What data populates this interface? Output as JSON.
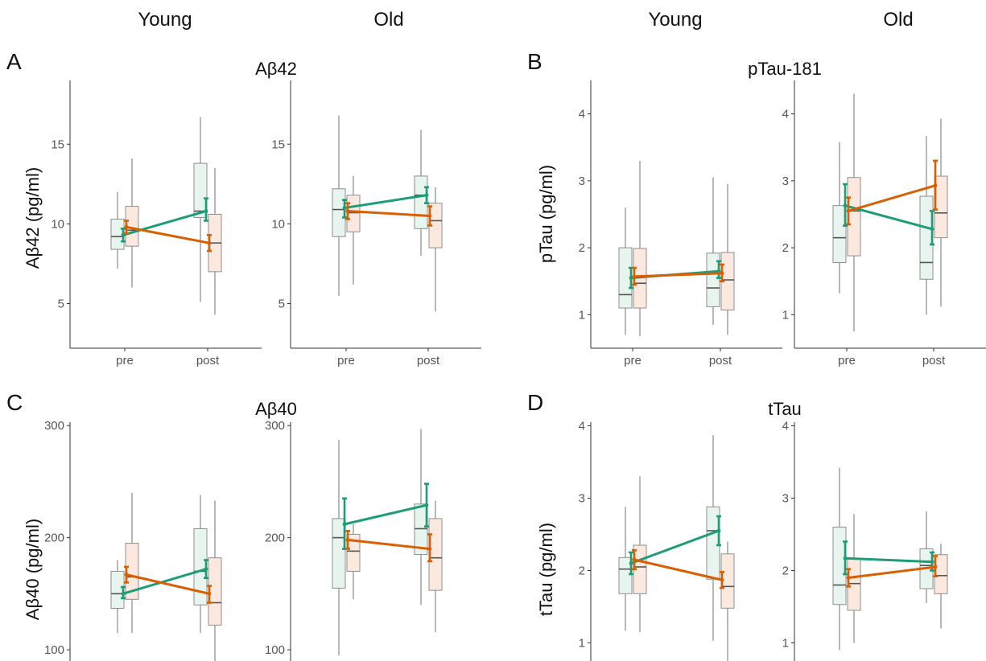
{
  "column_headers": [
    "Young",
    "Old",
    "Young",
    "Old"
  ],
  "colors": {
    "group1": "#1b9e77",
    "group2": "#d95f02",
    "box1_fill": "#e8f5ef",
    "box2_fill": "#fbe9df",
    "box_edge": "#8f8f8f",
    "whisker": "#8a8a8a",
    "axis": "#333333"
  },
  "chart_data": [
    {
      "type": "box+line",
      "panel_label": "A",
      "title": "Aβ42",
      "ylabel": "Aβ42 (pg/ml)",
      "categories": [
        "pre",
        "post"
      ],
      "ylim": [
        2.2,
        19
      ],
      "yticks": [
        5,
        10,
        15
      ],
      "subplots": [
        {
          "name": "Young",
          "boxes": [
            [
              {
                "q1": 8.4,
                "median": 9.2,
                "q3": 10.3,
                "wlo": 7.2,
                "whi": 12.0
              },
              {
                "q1": 8.6,
                "median": 9.6,
                "q3": 11.1,
                "wlo": 6.0,
                "whi": 14.1
              }
            ],
            [
              {
                "q1": 10.4,
                "median": 10.8,
                "q3": 13.8,
                "wlo": 5.1,
                "whi": 16.7
              },
              {
                "q1": 7.0,
                "median": 8.8,
                "q3": 10.6,
                "wlo": 4.3,
                "whi": 13.5
              }
            ]
          ],
          "series": [
            {
              "values": [
                9.3,
                10.8
              ],
              "err": [
                [
                  8.9,
                  9.7
                ],
                [
                  10.2,
                  11.6
                ]
              ]
            },
            {
              "values": [
                9.8,
                8.8
              ],
              "err": [
                [
                  9.4,
                  10.2
                ],
                [
                  8.3,
                  9.3
                ]
              ]
            }
          ]
        },
        {
          "name": "Old",
          "boxes": [
            [
              {
                "q1": 9.2,
                "median": 10.9,
                "q3": 12.2,
                "wlo": 5.5,
                "whi": 16.8
              },
              {
                "q1": 9.5,
                "median": 10.7,
                "q3": 11.8,
                "wlo": 6.2,
                "whi": 13.0
              }
            ],
            [
              {
                "q1": 9.7,
                "median": 11.8,
                "q3": 13.0,
                "wlo": 8.0,
                "whi": 15.9
              },
              {
                "q1": 8.5,
                "median": 10.2,
                "q3": 11.3,
                "wlo": 4.5,
                "whi": 12.3
              }
            ]
          ],
          "series": [
            {
              "values": [
                11.0,
                11.8
              ],
              "err": [
                [
                  10.4,
                  11.5
                ],
                [
                  11.3,
                  12.3
                ]
              ]
            },
            {
              "values": [
                10.8,
                10.5
              ],
              "err": [
                [
                  10.3,
                  11.3
                ],
                [
                  9.9,
                  11.1
                ]
              ]
            }
          ]
        }
      ]
    },
    {
      "type": "box+line",
      "panel_label": "B",
      "title": "pTau-181",
      "ylabel": "pTau (pg/ml)",
      "categories": [
        "pre",
        "post"
      ],
      "ylim": [
        0.5,
        4.5
      ],
      "yticks": [
        1,
        2,
        3,
        4
      ],
      "subplots": [
        {
          "name": "Young",
          "boxes": [
            [
              {
                "q1": 1.1,
                "median": 1.3,
                "q3": 2.0,
                "wlo": 0.7,
                "whi": 2.6
              },
              {
                "q1": 1.1,
                "median": 1.47,
                "q3": 1.99,
                "wlo": 0.68,
                "whi": 3.3
              }
            ],
            [
              {
                "q1": 1.12,
                "median": 1.4,
                "q3": 1.92,
                "wlo": 0.85,
                "whi": 3.05
              },
              {
                "q1": 1.07,
                "median": 1.52,
                "q3": 1.93,
                "wlo": 0.7,
                "whi": 2.95
              }
            ]
          ],
          "series": [
            {
              "values": [
                1.55,
                1.65
              ],
              "err": [
                [
                  1.4,
                  1.7
                ],
                [
                  1.55,
                  1.8
                ]
              ]
            },
            {
              "values": [
                1.57,
                1.62
              ],
              "err": [
                [
                  1.45,
                  1.7
                ],
                [
                  1.5,
                  1.75
                ]
              ]
            }
          ]
        },
        {
          "name": "Old",
          "boxes": [
            [
              {
                "q1": 1.78,
                "median": 2.15,
                "q3": 2.63,
                "wlo": 1.32,
                "whi": 3.58
              },
              {
                "q1": 1.88,
                "median": 2.55,
                "q3": 3.05,
                "wlo": 0.75,
                "whi": 4.3
              }
            ],
            [
              {
                "q1": 1.53,
                "median": 1.78,
                "q3": 2.77,
                "wlo": 1.0,
                "whi": 3.67
              },
              {
                "q1": 2.15,
                "median": 2.52,
                "q3": 3.07,
                "wlo": 1.12,
                "whi": 3.93
              }
            ]
          ],
          "series": [
            {
              "values": [
                2.63,
                2.28
              ],
              "err": [
                [
                  2.33,
                  2.95
                ],
                [
                  2.05,
                  2.55
                ]
              ]
            },
            {
              "values": [
                2.55,
                2.93
              ],
              "err": [
                [
                  2.35,
                  2.75
                ],
                [
                  2.57,
                  3.3
                ]
              ]
            }
          ]
        }
      ]
    },
    {
      "type": "box+line",
      "panel_label": "C",
      "title": "Aβ40",
      "ylabel": "Aβ40 (pg/ml)",
      "categories": [
        "pre",
        "post"
      ],
      "ylim": [
        90,
        303
      ],
      "yticks": [
        100,
        200,
        300
      ],
      "subplots": [
        {
          "name": "Young",
          "boxes": [
            [
              {
                "q1": 137,
                "median": 150,
                "q3": 170,
                "wlo": 115,
                "whi": 180
              },
              {
                "q1": 145,
                "median": 165,
                "q3": 195,
                "wlo": 115,
                "whi": 240
              }
            ],
            [
              {
                "q1": 140,
                "median": 170,
                "q3": 208,
                "wlo": 115,
                "whi": 238
              },
              {
                "q1": 122,
                "median": 142,
                "q3": 182,
                "wlo": 90,
                "whi": 233
              }
            ]
          ],
          "series": [
            {
              "values": [
                150,
                172
              ],
              "err": [
                [
                  146,
                  156
                ],
                [
                  164,
                  180
                ]
              ]
            },
            {
              "values": [
                167,
                150
              ],
              "err": [
                [
                  160,
                  174
                ],
                [
                  142,
                  157
                ]
              ]
            }
          ]
        },
        {
          "name": "Old",
          "boxes": [
            [
              {
                "q1": 155,
                "median": 200,
                "q3": 217,
                "wlo": 95,
                "whi": 287
              },
              {
                "q1": 170,
                "median": 188,
                "q3": 203,
                "wlo": 145,
                "whi": 212
              }
            ],
            [
              {
                "q1": 185,
                "median": 208,
                "q3": 230,
                "wlo": 140,
                "whi": 297
              },
              {
                "q1": 153,
                "median": 182,
                "q3": 217,
                "wlo": 116,
                "whi": 233
              }
            ]
          ],
          "series": [
            {
              "values": [
                212,
                229
              ],
              "err": [
                [
                  190,
                  235
                ],
                [
                  210,
                  248
                ]
              ]
            },
            {
              "values": [
                198,
                190
              ],
              "err": [
                [
                  190,
                  206
                ],
                [
                  179,
                  203
                ]
              ]
            }
          ]
        }
      ]
    },
    {
      "type": "box+line",
      "panel_label": "D",
      "title": "tTau",
      "ylabel": "tTau (pg/ml)",
      "categories": [
        "pre",
        "post"
      ],
      "ylim": [
        0.75,
        4.05
      ],
      "yticks": [
        1,
        2,
        3,
        4
      ],
      "subplots": [
        {
          "name": "Young",
          "boxes": [
            [
              {
                "q1": 1.68,
                "median": 2.02,
                "q3": 2.18,
                "wlo": 1.17,
                "whi": 2.88
              },
              {
                "q1": 1.68,
                "median": 2.05,
                "q3": 2.35,
                "wlo": 1.15,
                "whi": 3.3
              }
            ],
            [
              {
                "q1": 1.88,
                "median": 2.55,
                "q3": 2.88,
                "wlo": 1.03,
                "whi": 3.87
              },
              {
                "q1": 1.48,
                "median": 1.78,
                "q3": 2.23,
                "wlo": 0.75,
                "whi": 2.4
              }
            ]
          ],
          "series": [
            {
              "values": [
                2.1,
                2.55
              ],
              "err": [
                [
                  1.95,
                  2.25
                ],
                [
                  2.35,
                  2.75
                ]
              ]
            },
            {
              "values": [
                2.15,
                1.87
              ],
              "err": [
                [
                  2.02,
                  2.28
                ],
                [
                  1.76,
                  1.98
                ]
              ]
            }
          ]
        },
        {
          "name": "Old",
          "boxes": [
            [
              {
                "q1": 1.53,
                "median": 1.8,
                "q3": 2.6,
                "wlo": 0.9,
                "whi": 3.42
              },
              {
                "q1": 1.45,
                "median": 1.82,
                "q3": 2.17,
                "wlo": 1.0,
                "whi": 2.78
              }
            ],
            [
              {
                "q1": 1.75,
                "median": 2.07,
                "q3": 2.3,
                "wlo": 1.55,
                "whi": 2.82
              },
              {
                "q1": 1.68,
                "median": 1.93,
                "q3": 2.22,
                "wlo": 1.2,
                "whi": 2.37
              }
            ]
          ],
          "series": [
            {
              "values": [
                2.17,
                2.12
              ],
              "err": [
                [
                  1.95,
                  2.4
                ],
                [
                  2.0,
                  2.25
                ]
              ]
            },
            {
              "values": [
                1.9,
                2.05
              ],
              "err": [
                [
                  1.78,
                  2.02
                ],
                [
                  1.92,
                  2.2
                ]
              ]
            }
          ]
        }
      ]
    }
  ]
}
